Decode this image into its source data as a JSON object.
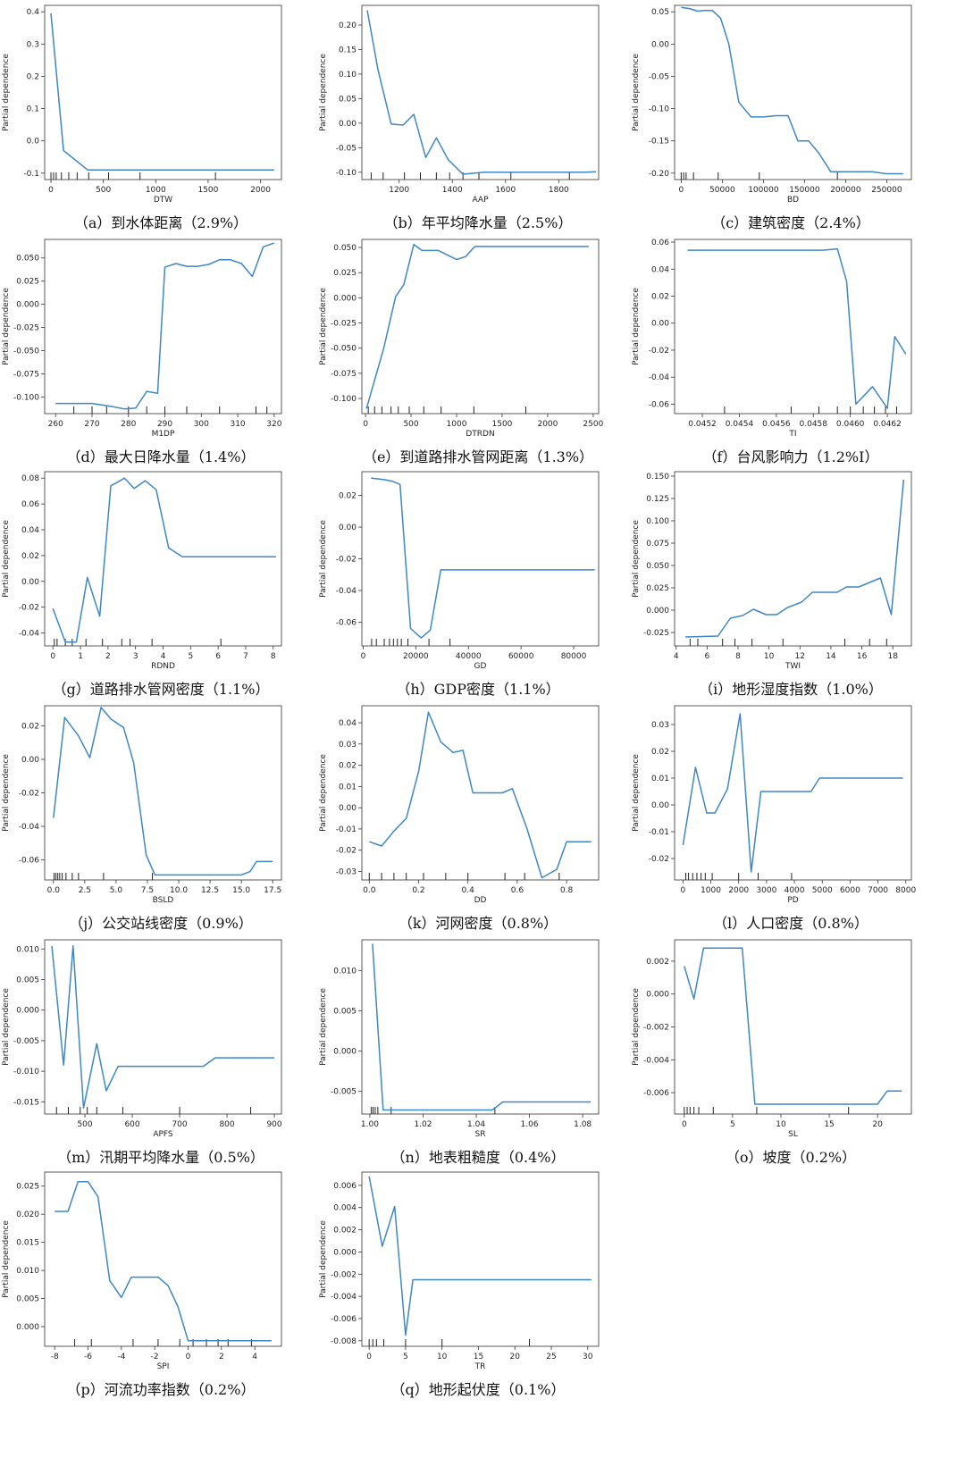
{
  "style": {
    "line_color": "#3f87c4",
    "axis_color": "#333333",
    "rug_color": "#222222"
  },
  "chart_data": [
    {
      "id": "a",
      "type": "line",
      "caption": "（a）到水体距离（2.9%）",
      "xlabel": "DTW",
      "ylabel": "Partial dependence",
      "xlim": [
        -60,
        2200
      ],
      "ylim": [
        -0.12,
        0.42
      ],
      "xticks": [
        0,
        500,
        1000,
        1500,
        2000
      ],
      "yticks": [
        -0.1,
        0.0,
        0.1,
        0.2,
        0.3,
        0.4
      ],
      "x": [
        0,
        120,
        350,
        2130
      ],
      "y": [
        0.395,
        -0.03,
        -0.09,
        -0.09
      ],
      "rug": [
        0,
        25,
        50,
        100,
        170,
        250,
        360,
        550,
        850,
        1570
      ]
    },
    {
      "id": "b",
      "type": "line",
      "caption": "（b）年平均降水量（2.5%）",
      "xlabel": "AAP",
      "ylabel": "Partial dependence",
      "xlim": [
        1060,
        1950
      ],
      "ylim": [
        -0.115,
        0.24
      ],
      "xticks": [
        1200,
        1400,
        1600,
        1800
      ],
      "yticks": [
        -0.1,
        -0.05,
        0.0,
        0.05,
        0.1,
        0.15,
        0.2
      ],
      "x": [
        1080,
        1120,
        1170,
        1215,
        1255,
        1300,
        1340,
        1385,
        1440,
        1520,
        1700,
        1900,
        1940
      ],
      "y": [
        0.23,
        0.11,
        -0.002,
        -0.004,
        0.018,
        -0.07,
        -0.03,
        -0.075,
        -0.104,
        -0.1,
        -0.1,
        -0.1,
        -0.099
      ],
      "rug": [
        1095,
        1140,
        1220,
        1280,
        1340,
        1390,
        1440,
        1500,
        1620,
        1840
      ]
    },
    {
      "id": "c",
      "type": "line",
      "caption": "（c）建筑密度（2.4%）",
      "xlabel": "BD",
      "ylabel": "Partial dependence",
      "xlim": [
        -8000,
        280000
      ],
      "ylim": [
        -0.21,
        0.06
      ],
      "xticks": [
        0,
        50000,
        100000,
        150000,
        200000,
        250000
      ],
      "yticks": [
        -0.2,
        -0.15,
        -0.1,
        -0.05,
        0.0,
        0.05
      ],
      "x": [
        0,
        10000,
        20000,
        28000,
        38000,
        48000,
        58000,
        70000,
        85000,
        100000,
        115000,
        130000,
        142000,
        155000,
        168000,
        182000,
        192000,
        200000,
        232000,
        250000,
        270000
      ],
      "y": [
        0.057,
        0.055,
        0.051,
        0.052,
        0.052,
        0.04,
        0.0,
        -0.09,
        -0.113,
        -0.113,
        -0.111,
        -0.111,
        -0.15,
        -0.15,
        -0.17,
        -0.198,
        -0.198,
        -0.198,
        -0.198,
        -0.201,
        -0.201
      ],
      "rug": [
        0,
        3000,
        6000,
        15000,
        45000,
        95000,
        190000
      ]
    },
    {
      "id": "d",
      "type": "line",
      "caption": "（d）最大日降水量（1.4%）",
      "xlabel": "M1DP",
      "ylabel": "Partial dependence",
      "xlim": [
        257,
        322
      ],
      "ylim": [
        -0.118,
        0.07
      ],
      "xticks": [
        260,
        270,
        280,
        290,
        300,
        310,
        320
      ],
      "yticks": [
        -0.1,
        -0.075,
        -0.05,
        -0.025,
        0.0,
        0.025,
        0.05
      ],
      "x": [
        260,
        267,
        270,
        275,
        279,
        282,
        285,
        288,
        290,
        293,
        296,
        299,
        302,
        305,
        308,
        311,
        314,
        317,
        320
      ],
      "y": [
        -0.107,
        -0.107,
        -0.107,
        -0.11,
        -0.113,
        -0.112,
        -0.094,
        -0.096,
        0.04,
        0.044,
        0.041,
        0.041,
        0.043,
        0.048,
        0.048,
        0.044,
        0.03,
        0.062,
        0.066
      ],
      "rug": [
        265,
        270,
        274,
        280,
        285,
        290,
        296,
        305,
        315,
        318
      ]
    },
    {
      "id": "e",
      "type": "line",
      "caption": "（e）到道路排水管网距离（1.3%）",
      "xlabel": "DTRDN",
      "ylabel": "Partial dependence",
      "xlim": [
        -40,
        2560
      ],
      "ylim": [
        -0.115,
        0.058
      ],
      "xticks": [
        0,
        500,
        1000,
        1500,
        2000,
        2500
      ],
      "yticks": [
        -0.1,
        -0.075,
        -0.05,
        -0.025,
        0.0,
        0.025,
        0.05
      ],
      "x": [
        10,
        200,
        330,
        420,
        530,
        620,
        720,
        800,
        1000,
        1100,
        1200,
        1400,
        2450
      ],
      "y": [
        -0.11,
        -0.05,
        0.001,
        0.013,
        0.053,
        0.047,
        0.047,
        0.047,
        0.038,
        0.041,
        0.051,
        0.051,
        0.051
      ],
      "rug": [
        30,
        100,
        180,
        280,
        360,
        480,
        640,
        830,
        1190,
        1760
      ]
    },
    {
      "id": "f",
      "type": "line",
      "caption": "（f）台风影响力（1.2%I）",
      "xlabel": "TI",
      "ylabel": "Partial dependence",
      "xlim": [
        0.04505,
        0.04633
      ],
      "ylim": [
        -0.067,
        0.062
      ],
      "xticks": [
        0.0452,
        0.0454,
        0.0456,
        0.0458,
        0.046,
        0.0462
      ],
      "yticks": [
        -0.06,
        -0.04,
        -0.02,
        0.0,
        0.02,
        0.04,
        0.06
      ],
      "x": [
        0.04512,
        0.0454,
        0.0456,
        0.04575,
        0.04585,
        0.04593,
        0.04598,
        0.04603,
        0.04612,
        0.0462,
        0.04624,
        0.0463
      ],
      "y": [
        0.054,
        0.054,
        0.054,
        0.054,
        0.054,
        0.055,
        0.031,
        -0.06,
        -0.047,
        -0.063,
        -0.01,
        -0.023
      ],
      "rug": [
        0.04532,
        0.04568,
        0.04583,
        0.04593,
        0.046,
        0.04607,
        0.04613,
        0.04619,
        0.04625
      ]
    },
    {
      "id": "g",
      "type": "line",
      "caption": "（g）道路排水管网密度（1.1%）",
      "xlabel": "RDND",
      "ylabel": "Partial dependence",
      "xlim": [
        -0.3,
        8.3
      ],
      "ylim": [
        -0.05,
        0.085
      ],
      "xticks": [
        0,
        1,
        2,
        3,
        4,
        5,
        6,
        7,
        8
      ],
      "yticks": [
        -0.04,
        -0.02,
        0.0,
        0.02,
        0.04,
        0.06,
        0.08
      ],
      "x": [
        0,
        0.45,
        0.85,
        1.25,
        1.7,
        2.1,
        2.6,
        2.95,
        3.35,
        3.75,
        4.2,
        4.7,
        8.1
      ],
      "y": [
        -0.021,
        -0.047,
        -0.047,
        0.003,
        -0.027,
        0.074,
        0.08,
        0.072,
        0.078,
        0.071,
        0.026,
        0.019,
        0.019
      ],
      "rug": [
        0.05,
        0.15,
        0.45,
        0.7,
        1.2,
        1.8,
        2.5,
        2.8,
        3.6,
        6.1
      ]
    },
    {
      "id": "h",
      "type": "line",
      "caption": "（h）GDP密度（1.1%）",
      "xlabel": "GD",
      "ylabel": "Partial dependence",
      "xlim": [
        -500,
        89500
      ],
      "ylim": [
        -0.075,
        0.035
      ],
      "xticks": [
        0,
        20000,
        40000,
        60000,
        80000
      ],
      "yticks": [
        -0.06,
        -0.04,
        -0.02,
        0.0,
        0.02
      ],
      "x": [
        3000,
        8000,
        11000,
        14000,
        18000,
        22000,
        25500,
        29500,
        88000
      ],
      "y": [
        0.031,
        0.03,
        0.029,
        0.027,
        -0.064,
        -0.07,
        -0.065,
        -0.027,
        -0.027
      ],
      "rug": [
        3200,
        5000,
        8000,
        10000,
        11500,
        13000,
        14500,
        17000,
        25000,
        33000
      ]
    },
    {
      "id": "i",
      "type": "line",
      "caption": "（i）地形湿度指数（1.0%）",
      "xlabel": "TWI",
      "ylabel": "Partial dependence",
      "xlim": [
        3.9,
        19.2
      ],
      "ylim": [
        -0.04,
        0.155
      ],
      "xticks": [
        4,
        6,
        8,
        10,
        12,
        14,
        16,
        18
      ],
      "yticks": [
        -0.025,
        0.0,
        0.025,
        0.05,
        0.075,
        0.1,
        0.125,
        0.15
      ],
      "x": [
        4.6,
        6.7,
        7.5,
        8.3,
        9.0,
        9.8,
        10.5,
        11.2,
        12.1,
        12.8,
        13.6,
        14.4,
        15.0,
        15.8,
        16.5,
        17.2,
        17.9,
        18.7
      ],
      "y": [
        -0.03,
        -0.029,
        -0.009,
        -0.006,
        0.001,
        -0.005,
        -0.005,
        0.003,
        0.009,
        0.02,
        0.02,
        0.02,
        0.026,
        0.026,
        0.031,
        0.036,
        -0.005,
        0.146
      ],
      "rug": [
        4.9,
        5.4,
        7.0,
        7.8,
        8.9,
        10.9,
        14.9,
        16.5,
        17.6
      ]
    },
    {
      "id": "j",
      "type": "line",
      "caption": "（j）公交站线密度（0.9%）",
      "xlabel": "BSLD",
      "ylabel": "Partial dependence",
      "xlim": [
        -0.7,
        18.2
      ],
      "ylim": [
        -0.072,
        0.032
      ],
      "xticks": [
        0.0,
        2.5,
        5.0,
        7.5,
        10.0,
        12.5,
        15.0,
        17.5
      ],
      "yticks": [
        -0.06,
        -0.04,
        -0.02,
        0.0,
        0.02
      ],
      "x": [
        0,
        0.9,
        2.0,
        2.9,
        3.8,
        4.6,
        5.6,
        6.4,
        7.4,
        8.1,
        10.0,
        12.5,
        15.0,
        15.7,
        16.2,
        17.5
      ],
      "y": [
        -0.035,
        0.025,
        0.014,
        0.001,
        0.031,
        0.024,
        0.019,
        -0.002,
        -0.057,
        -0.069,
        -0.069,
        -0.069,
        -0.069,
        -0.067,
        -0.061,
        -0.061
      ],
      "rug": [
        0.05,
        0.2,
        0.35,
        0.5,
        0.7,
        1.0,
        1.5,
        2.0,
        4.0,
        7.9
      ]
    },
    {
      "id": "k",
      "type": "line",
      "caption": "（k）河网密度（0.8%）",
      "xlabel": "DD",
      "ylabel": "Partial dependence",
      "xlim": [
        -0.03,
        0.93
      ],
      "ylim": [
        -0.034,
        0.048
      ],
      "xticks": [
        0.0,
        0.2,
        0.4,
        0.6,
        0.8
      ],
      "yticks": [
        -0.03,
        -0.02,
        -0.01,
        0.0,
        0.01,
        0.02,
        0.03,
        0.04
      ],
      "x": [
        0,
        0.05,
        0.1,
        0.15,
        0.2,
        0.24,
        0.29,
        0.34,
        0.38,
        0.42,
        0.48,
        0.54,
        0.58,
        0.64,
        0.7,
        0.76,
        0.8,
        0.9
      ],
      "y": [
        -0.016,
        -0.018,
        -0.011,
        -0.005,
        0.017,
        0.045,
        0.031,
        0.026,
        0.027,
        0.007,
        0.007,
        0.007,
        0.009,
        -0.01,
        -0.033,
        -0.029,
        -0.016,
        -0.016
      ],
      "rug": [
        0,
        0.05,
        0.1,
        0.15,
        0.22,
        0.31,
        0.4,
        0.55,
        0.63,
        0.77
      ]
    },
    {
      "id": "l",
      "type": "line",
      "caption": "（l）人口密度（0.8%）",
      "xlabel": "PD",
      "ylabel": "Partial dependence",
      "xlim": [
        -300,
        8200
      ],
      "ylim": [
        -0.028,
        0.037
      ],
      "xticks": [
        0,
        1000,
        2000,
        3000,
        4000,
        5000,
        6000,
        7000,
        8000
      ],
      "yticks": [
        -0.02,
        -0.01,
        0.0,
        0.01,
        0.02,
        0.03
      ],
      "x": [
        0,
        450,
        850,
        1150,
        1600,
        2050,
        2450,
        2800,
        3500,
        4600,
        4900,
        6000,
        7900
      ],
      "y": [
        -0.015,
        0.014,
        -0.003,
        -0.003,
        0.006,
        0.034,
        -0.025,
        0.005,
        0.005,
        0.005,
        0.01,
        0.01,
        0.01
      ],
      "rug": [
        100,
        200,
        350,
        500,
        650,
        800,
        1050,
        2000,
        2700,
        3900
      ]
    },
    {
      "id": "m",
      "type": "line",
      "caption": "（m）汛期平均降水量（0.5%）",
      "xlabel": "APFS",
      "ylabel": "Partial dependence",
      "xlim": [
        415,
        915
      ],
      "ylim": [
        -0.017,
        0.0115
      ],
      "xticks": [
        500,
        600,
        700,
        800,
        900
      ],
      "yticks": [
        -0.015,
        -0.01,
        -0.005,
        0.0,
        0.005,
        0.01
      ],
      "x": [
        430,
        455,
        475,
        497,
        525,
        545,
        570,
        650,
        750,
        775,
        830,
        900
      ],
      "y": [
        0.0105,
        -0.009,
        0.0105,
        -0.016,
        -0.0055,
        -0.0132,
        -0.0092,
        -0.0092,
        -0.0092,
        -0.0078,
        -0.0078,
        -0.0078
      ],
      "rug": [
        440,
        465,
        490,
        505,
        525,
        580,
        700,
        850
      ]
    },
    {
      "id": "n",
      "type": "line",
      "caption": "（n）地表粗糙度（0.4%）",
      "xlabel": "SR",
      "ylabel": "Partial dependence",
      "xlim": [
        0.997,
        1.086
      ],
      "ylim": [
        -0.0078,
        0.0138
      ],
      "xticks": [
        1.0,
        1.02,
        1.04,
        1.06,
        1.08
      ],
      "yticks": [
        -0.005,
        0.0,
        0.005,
        0.01
      ],
      "x": [
        1.001,
        1.005,
        1.04,
        1.046,
        1.05,
        1.083
      ],
      "y": [
        0.0133,
        -0.0073,
        -0.0073,
        -0.0073,
        -0.0063,
        -0.0063
      ],
      "rug": [
        1.0005,
        1.0012,
        1.002,
        1.003,
        1.008,
        1.047
      ]
    },
    {
      "id": "o",
      "type": "line",
      "caption": "（o）坡度（0.2%）",
      "xlabel": "SL",
      "ylabel": "Partial dependence",
      "xlim": [
        -1,
        23.5
      ],
      "ylim": [
        -0.0073,
        0.0033
      ],
      "xticks": [
        0,
        5,
        10,
        15,
        20
      ],
      "yticks": [
        -0.006,
        -0.004,
        -0.002,
        0.0,
        0.002
      ],
      "x": [
        0,
        1,
        2,
        3,
        6,
        7.3,
        14,
        20,
        21,
        22.5
      ],
      "y": [
        0.0017,
        -0.0003,
        0.0028,
        0.0028,
        0.0028,
        -0.0067,
        -0.0067,
        -0.0067,
        -0.0059,
        -0.0059
      ],
      "rug": [
        0,
        0.3,
        0.6,
        1.0,
        1.5,
        3.0,
        7.5,
        17
      ]
    },
    {
      "id": "p",
      "type": "line",
      "caption": "（p）河流功率指数（0.2%）",
      "xlabel": "SPI",
      "ylabel": "Partial dependence",
      "xlim": [
        -8.6,
        5.6
      ],
      "ylim": [
        -0.0035,
        0.0275
      ],
      "xticks": [
        -8,
        -6,
        -4,
        -2,
        0,
        2,
        4
      ],
      "yticks": [
        0.0,
        0.005,
        0.01,
        0.015,
        0.02,
        0.025
      ],
      "x": [
        -8,
        -7.2,
        -6.6,
        -6,
        -5.4,
        -4.7,
        -4,
        -3.4,
        -2.6,
        -1.8,
        -1.2,
        -0.6,
        0,
        0.3,
        1,
        5
      ],
      "y": [
        0.0205,
        0.0205,
        0.0258,
        0.0258,
        0.0231,
        0.0082,
        0.0052,
        0.0088,
        0.0088,
        0.0088,
        0.0073,
        0.0035,
        -0.0025,
        -0.0025,
        -0.0025,
        -0.0025
      ],
      "rug": [
        -6.8,
        -5.8,
        -3.3,
        -1.8,
        -0.5,
        0.3,
        1.1,
        1.8,
        2.4,
        3.8
      ]
    },
    {
      "id": "q",
      "type": "line",
      "caption": "（q）地形起伏度（0.1%）",
      "xlabel": "TR",
      "ylabel": "Partial dependence",
      "xlim": [
        -1,
        31.5
      ],
      "ylim": [
        -0.0085,
        0.0072
      ],
      "xticks": [
        0,
        5,
        10,
        15,
        20,
        25,
        30
      ],
      "yticks": [
        -0.008,
        -0.006,
        -0.004,
        -0.002,
        0.0,
        0.002,
        0.004,
        0.006
      ],
      "x": [
        0,
        1.8,
        3.5,
        5,
        6,
        10,
        30.5
      ],
      "y": [
        0.0068,
        0.0005,
        0.0041,
        -0.0075,
        -0.0025,
        -0.0025,
        -0.0025
      ],
      "rug": [
        0,
        0.5,
        1.0,
        2.0,
        5.0,
        10.0,
        22.0
      ]
    }
  ]
}
